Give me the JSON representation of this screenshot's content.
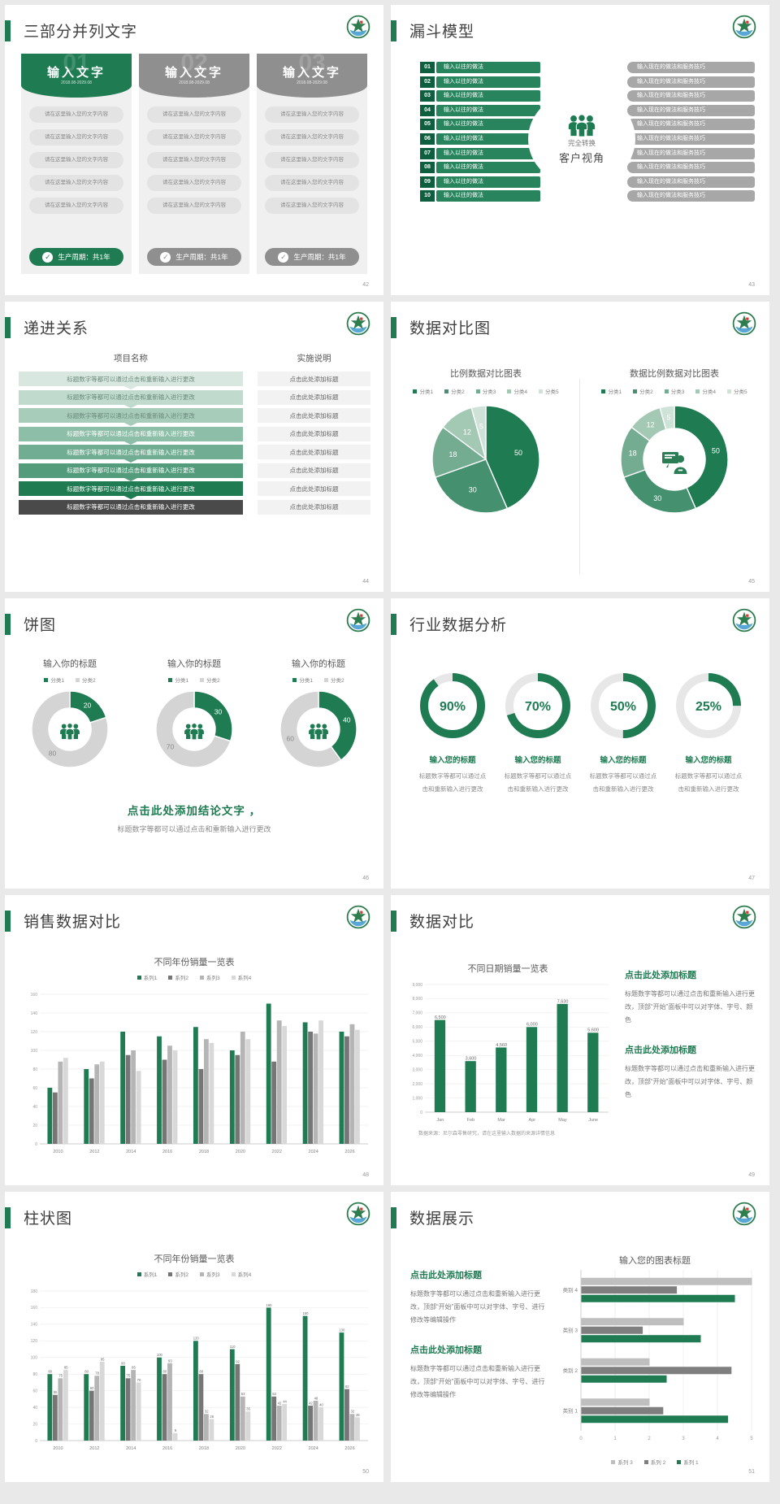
{
  "page_bg": "#e9e9e9",
  "colors": {
    "accent_green": "#1e7b52",
    "dark_green": "#0e5f3f",
    "mid_green": "#27845d",
    "gray_bar": "#a7a7a7",
    "gray_header": "#8f8f8f",
    "title_text": "#404040",
    "ring_track": "#e7e7e7",
    "green_palette": [
      "#1e7b52",
      "#45916f",
      "#73ac90",
      "#a3c8b4",
      "#cfe2d8"
    ]
  },
  "slides": {
    "s42": {
      "title": "三部分并列文字",
      "page": "42",
      "columns": [
        {
          "style": "green",
          "num": "01",
          "title": "输入文字",
          "date": "2018.08-2029.08",
          "items": [
            "请在这里输入您的文字内容",
            "请在这里输入您的文字内容",
            "请在这里输入您的文字内容",
            "请在这里输入您的文字内容",
            "请在这里输入您的文字内容"
          ],
          "footer": "生产周期：共1年"
        },
        {
          "style": "gray",
          "num": "02",
          "title": "输入文字",
          "date": "2018.08-2029.08",
          "items": [
            "请在这里输入您的文字内容",
            "请在这里输入您的文字内容",
            "请在这里输入您的文字内容",
            "请在这里输入您的文字内容",
            "请在这里输入您的文字内容"
          ],
          "footer": "生产周期：共1年"
        },
        {
          "style": "gray",
          "num": "03",
          "title": "输入文字",
          "date": "2018.08-2029.08",
          "items": [
            "请在这里输入您的文字内容",
            "请在这里输入您的文字内容",
            "请在这里输入您的文字内容",
            "请在这里输入您的文字内容",
            "请在这里输入您的文字内容"
          ],
          "footer": "生产周期：共1年"
        }
      ]
    },
    "s43": {
      "title": "漏斗模型",
      "page": "43",
      "left_label": "输入以往的做法",
      "right_label": "输入现在的做法和服务技巧",
      "numbers": [
        "01",
        "02",
        "03",
        "04",
        "05",
        "06",
        "07",
        "08",
        "09",
        "10"
      ],
      "center": {
        "icon": "people-group-icon",
        "top": "完全转换",
        "bottom": "客户视角"
      }
    },
    "s44": {
      "title": "递进关系",
      "page": "44",
      "col1_header": "项目名称",
      "col2_header": "实施说明",
      "left_text": "标题数字等都可以通过点击和重新输入进行更改",
      "right_text": "点击此处添加标题",
      "rows": [
        {
          "bg": "#d8e8e0",
          "fg": "#6b8a7b"
        },
        {
          "bg": "#c0dacd",
          "fg": "#6b8a7b"
        },
        {
          "bg": "#a7ccba",
          "fg": "#6b8a7b"
        },
        {
          "bg": "#8dbea7",
          "fg": "#ffffff"
        },
        {
          "bg": "#70ad92",
          "fg": "#ffffff"
        },
        {
          "bg": "#529c7c",
          "fg": "#ffffff"
        },
        {
          "bg": "#1e7b52",
          "fg": "#ffffff"
        },
        {
          "bg": "#4a4a4a",
          "fg": "#ffffff"
        }
      ]
    },
    "s45": {
      "title": "数据对比图",
      "page": "45"
    },
    "s46": {
      "title": "饼图",
      "page": "46",
      "conclusion": "点击此处添加结论文字 ，",
      "conclusion_sub": "标题数字等都可以通过点击和重新输入进行更改",
      "center_icon": "people-group-icon"
    },
    "s47": {
      "title": "行业数据分析",
      "page": "47",
      "items": [
        {
          "pct": 90,
          "pct_label": "90%",
          "label": "输入您的标题",
          "desc": "标题数字等都可以通过点击和重新输入进行更改"
        },
        {
          "pct": 70,
          "pct_label": "70%",
          "label": "输入您的标题",
          "desc": "标题数字等都可以通过点击和重新输入进行更改"
        },
        {
          "pct": 50,
          "pct_label": "50%",
          "label": "输入您的标题",
          "desc": "标题数字等都可以通过点击和重新输入进行更改"
        },
        {
          "pct": 25,
          "pct_label": "25%",
          "label": "输入您的标题",
          "desc": "标题数字等都可以通过点击和重新输入进行更改"
        }
      ]
    },
    "s48": {
      "title": "销售数据对比",
      "page": "48"
    },
    "s49": {
      "title": "数据对比",
      "page": "49",
      "source": "数据来源：尼尔森零售研究，请在这里输入数据的来源详情信息",
      "blocks": [
        {
          "headline": "点击此处添加标题",
          "desc": "标题数字等都可以通过点击和重新输入进行更改，顶部“开始”面板中可以对字体、字号、颜色"
        },
        {
          "headline": "点击此处添加标题",
          "desc": "标题数字等都可以通过点击和重新输入进行更改，顶部“开始”面板中可以对字体、字号、颜色"
        }
      ]
    },
    "s50": {
      "title": "柱状图",
      "page": "50"
    },
    "s51": {
      "title": "数据展示",
      "page": "51",
      "blocks": [
        {
          "headline": "点击此处添加标题",
          "desc": "标题数字等都可以通过点击和重新输入进行更改，顶部“开始”面板中可以对字体、字号、进行修改等编辑操作"
        },
        {
          "headline": "点击此处添加标题",
          "desc": "标题数字等都可以通过点击和重新输入进行更改，顶部“开始”面板中可以对字体、字号、进行修改等编辑操作"
        }
      ]
    }
  },
  "chart_data": {
    "pie45": {
      "type": "pie",
      "title": "比例数据对比图表",
      "legend": [
        "分类1",
        "分类2",
        "分类3",
        "分类4",
        "分类5"
      ],
      "values": [
        50,
        30,
        18,
        12,
        5
      ],
      "legend_position": "top"
    },
    "donut45": {
      "type": "pie",
      "title": "数据比例数据对比图表",
      "legend": [
        "分类1",
        "分类2",
        "分类3",
        "分类4",
        "分类5"
      ],
      "values": [
        50,
        30,
        18,
        12,
        5
      ],
      "center_icon": "presenter-icon",
      "legend_position": "top"
    },
    "donuts46": [
      {
        "type": "pie",
        "title": "输入你的标题",
        "legend": [
          "分类1",
          "分类2"
        ],
        "values": [
          20,
          80
        ]
      },
      {
        "type": "pie",
        "title": "输入你的标题",
        "legend": [
          "分类1",
          "分类2"
        ],
        "values": [
          30,
          70
        ]
      },
      {
        "type": "pie",
        "title": "输入你的标题",
        "legend": [
          "分类1",
          "分类2"
        ],
        "values": [
          40,
          60
        ]
      }
    ],
    "bar48": {
      "type": "bar",
      "title": "不同年份销量一览表",
      "categories": [
        "2010",
        "2012",
        "2014",
        "2016",
        "2018",
        "2020",
        "2022",
        "2024",
        "2026"
      ],
      "series": [
        {
          "name": "系列1",
          "color": "#1e7b52",
          "values": [
            60,
            80,
            120,
            115,
            125,
            100,
            150,
            130,
            120
          ]
        },
        {
          "name": "系列2",
          "color": "#767676",
          "values": [
            55,
            70,
            95,
            90,
            80,
            95,
            88,
            120,
            115
          ]
        },
        {
          "name": "系列3",
          "color": "#b5b5b5",
          "values": [
            88,
            85,
            100,
            105,
            112,
            120,
            132,
            118,
            128
          ]
        },
        {
          "name": "系列4",
          "color": "#d8d8d8",
          "values": [
            92,
            88,
            78,
            100,
            108,
            112,
            126,
            132,
            122
          ]
        }
      ],
      "ylim": [
        0,
        160
      ],
      "ystep": 20,
      "grid": true,
      "show_labels": false
    },
    "bar49": {
      "type": "bar",
      "title": "不同日期销量一览表",
      "categories": [
        "Jan",
        "Feb",
        "Mar",
        "Apr",
        "May",
        "June"
      ],
      "series": [
        {
          "name": "销量",
          "color": "#1e7b52",
          "values": [
            6500,
            3600,
            4560,
            6000,
            7630,
            5600
          ]
        }
      ],
      "labels": [
        "6,500",
        "3,600",
        "4,560",
        "6,000",
        "7,630",
        "5,600"
      ],
      "ylim": [
        0,
        9000
      ],
      "ystep": 1000,
      "grid": true,
      "show_labels": true
    },
    "bar50": {
      "type": "bar",
      "title": "不同年份销量一览表",
      "categories": [
        "2010",
        "2012",
        "2014",
        "2016",
        "2018",
        "2020",
        "2022",
        "2024",
        "2026"
      ],
      "series": [
        {
          "name": "系列1",
          "color": "#1e7b52",
          "values": [
            80,
            80,
            90,
            100,
            120,
            110,
            160,
            150,
            130
          ]
        },
        {
          "name": "系列2",
          "color": "#767676",
          "values": [
            55,
            60,
            75,
            80,
            80,
            92,
            53,
            42,
            62
          ]
        },
        {
          "name": "系列3",
          "color": "#b5b5b5",
          "values": [
            75,
            78,
            85,
            93,
            32,
            53,
            42,
            48,
            32
          ]
        },
        {
          "name": "系列4",
          "color": "#d8d8d8",
          "values": [
            85,
            95,
            70,
            9,
            26,
            35,
            44,
            40,
            28
          ]
        }
      ],
      "ylim": [
        0,
        180
      ],
      "ystep": 20,
      "grid": true,
      "show_labels": true
    },
    "hbar51": {
      "type": "bar",
      "orientation": "horizontal",
      "title": "输入您的图表标题",
      "categories": [
        "类别 4",
        "类别 3",
        "类别 2",
        "类别 1"
      ],
      "series": [
        {
          "name": "系列 1",
          "color": "#1e7b52",
          "values": [
            4.5,
            3.5,
            2.5,
            4.3
          ]
        },
        {
          "name": "系列 2",
          "color": "#7f7f7f",
          "values": [
            2.8,
            1.8,
            4.4,
            2.4
          ]
        },
        {
          "name": "系列 3",
          "color": "#bfbfbf",
          "values": [
            5,
            3,
            2,
            2
          ]
        }
      ],
      "xlim": [
        0,
        5
      ],
      "xticks": [
        0,
        1,
        2,
        3,
        4,
        5
      ],
      "grid": true,
      "legend_order": [
        "系列 3",
        "系列 2",
        "系列 1"
      ],
      "legend_position": "bottom"
    }
  }
}
